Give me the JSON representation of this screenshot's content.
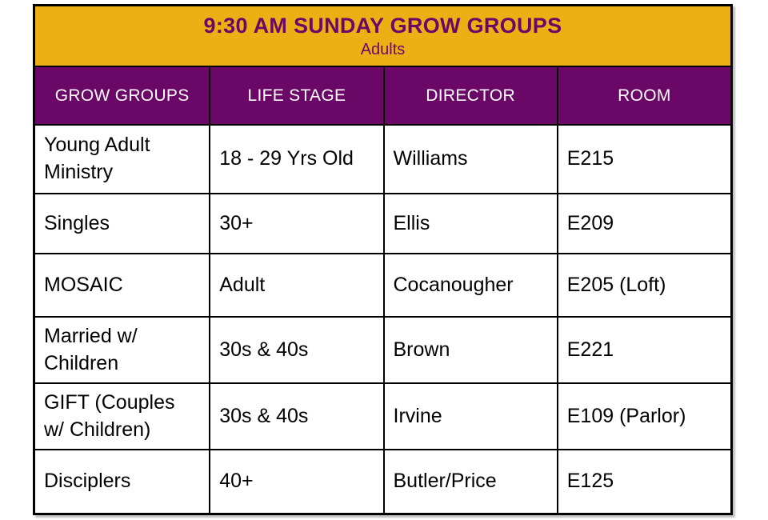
{
  "title": {
    "line1": "9:30 AM SUNDAY GROW GROUPS",
    "line2": "Adults"
  },
  "columns": [
    "GROW GROUPS",
    "LIFE STAGE",
    "DIRECTOR",
    "ROOM"
  ],
  "rows": [
    {
      "group": "Young Adult\nMinistry",
      "life_stage": "18 - 29 Yrs Old",
      "director": "Williams",
      "room": "E215"
    },
    {
      "group": "Singles",
      "life_stage": "30+",
      "director": "Ellis",
      "room": "E209"
    },
    {
      "group": "MOSAIC",
      "life_stage": "Adult",
      "director": "Cocanougher",
      "room": "E205 (Loft)"
    },
    {
      "group": "Married w/\nChildren",
      "life_stage": "30s & 40s",
      "director": "Brown",
      "room": "E221"
    },
    {
      "group": "GIFT (Couples\nw/ Children)",
      "life_stage": "30s & 40s",
      "director": "Irvine",
      "room": "E109 (Parlor)"
    },
    {
      "group": "Disciplers",
      "life_stage": "40+",
      "director": "Butler/Price",
      "room": "E125"
    }
  ],
  "colors": {
    "gold": "#ECAF14",
    "purple": "#6A0767",
    "border": "#000000",
    "header_text": "#FFFFFF",
    "body_text": "#000000"
  }
}
